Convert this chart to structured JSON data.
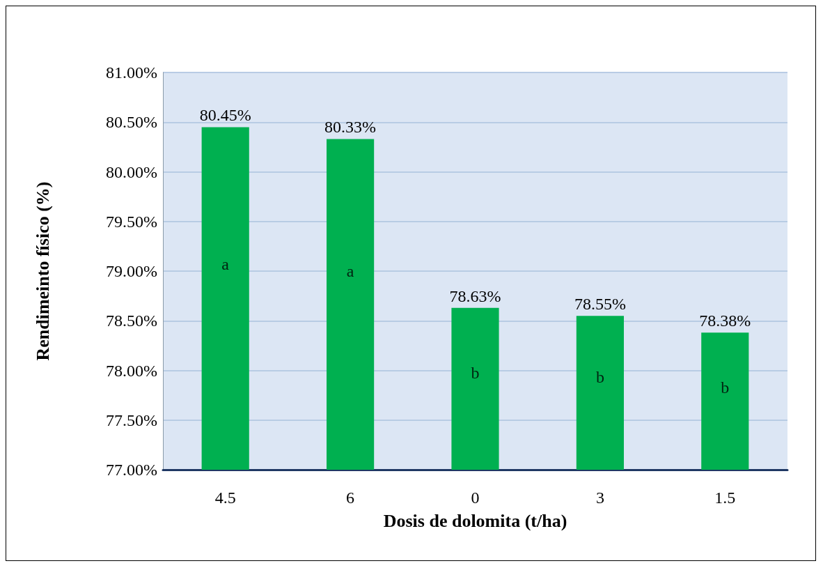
{
  "chart_data": {
    "type": "bar",
    "xlabel": "Dosis de dolomita (t/ha)",
    "ylabel": "Rendimeinto físico (%)",
    "categories": [
      "4.5",
      "6",
      "0",
      "3",
      "1.5"
    ],
    "values": [
      80.45,
      80.33,
      78.63,
      78.55,
      78.38
    ],
    "value_labels": [
      "80.45%",
      "80.33%",
      "78.63%",
      "78.55%",
      "78.38%"
    ],
    "color": "#00b050",
    "ylim": [
      77,
      81
    ],
    "yticks": [
      {
        "value": 77,
        "label": "77.00%"
      },
      {
        "value": 77.5,
        "label": "77.50%"
      },
      {
        "value": 78,
        "label": "78.00%"
      },
      {
        "value": 78.5,
        "label": "78.50%"
      },
      {
        "value": 79,
        "label": "79.00%"
      },
      {
        "value": 79.5,
        "label": "79.50%"
      },
      {
        "value": 80,
        "label": "80.00%"
      },
      {
        "value": 80.5,
        "label": "80.50%"
      },
      {
        "value": 81,
        "label": "81.00%"
      }
    ],
    "grid": "y",
    "annotations": [
      "a",
      "a",
      "b",
      "b",
      "b"
    ]
  }
}
